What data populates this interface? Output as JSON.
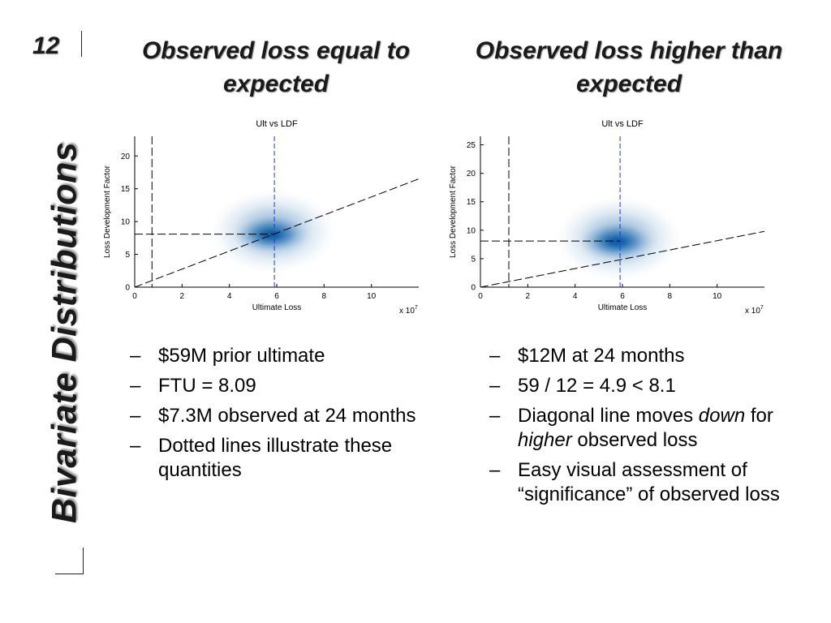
{
  "slide": {
    "number": "12",
    "side_title": "Bivariate Distributions"
  },
  "left": {
    "heading": "Observed loss equal to expected",
    "bullets": [
      {
        "dash": "–",
        "parts": [
          {
            "t": "$59M prior ultimate",
            "i": false
          }
        ]
      },
      {
        "dash": "–",
        "parts": [
          {
            "t": "FTU = 8.09",
            "i": false
          }
        ]
      },
      {
        "dash": "–",
        "parts": [
          {
            "t": "$7.3M observed at 24 months",
            "i": false
          }
        ]
      },
      {
        "dash": "–",
        "parts": [
          {
            "t": "Dotted lines illustrate these quantities",
            "i": false
          }
        ]
      }
    ]
  },
  "right": {
    "heading": "Observed loss higher than expected",
    "bullets": [
      {
        "dash": "–",
        "parts": [
          {
            "t": "$12M at 24 months",
            "i": false
          }
        ]
      },
      {
        "dash": "–",
        "parts": [
          {
            "t": "59 / 12 = 4.9 < 8.1",
            "i": false
          }
        ]
      },
      {
        "dash": "–",
        "parts": [
          {
            "t": "Diagonal line moves ",
            "i": false
          },
          {
            "t": "down",
            "i": true
          },
          {
            "t": " for ",
            "i": false
          },
          {
            "t": "higher",
            "i": true
          },
          {
            "t": " observed loss",
            "i": false
          }
        ]
      },
      {
        "dash": "–",
        "parts": [
          {
            "t": "Easy visual assessment of “significance” of observed loss",
            "i": false
          }
        ]
      }
    ]
  },
  "chart_data": [
    {
      "type": "heatmap",
      "title": "Ult vs LDF",
      "xlabel": "Ultimate Loss",
      "ylabel": "Loss Development Factor",
      "x_multiplier_label": "x 10",
      "x_multiplier_exp": "7",
      "xlim": [
        0,
        12
      ],
      "ylim": [
        0,
        23
      ],
      "xticks": [
        0,
        2,
        4,
        6,
        8,
        10
      ],
      "yticks": [
        0,
        5,
        10,
        15,
        20
      ],
      "density_center": {
        "x": 5.9,
        "y": 8.0
      },
      "colors": {
        "density": "#0b5ea8",
        "prior_ultimate_line": "#1f3fd1",
        "reference_lines": "#000000"
      },
      "reference_lines": {
        "prior_ultimate_x": 5.9,
        "observed_loss_x": 0.73,
        "ftu_y": 8.09,
        "diagonal": [
          [
            0,
            0
          ],
          [
            12,
            16.5
          ]
        ]
      },
      "grid": false
    },
    {
      "type": "heatmap",
      "title": "Ult vs LDF",
      "xlabel": "Ultimate Loss",
      "ylabel": "Loss Development Factor",
      "x_multiplier_label": "x 10",
      "x_multiplier_exp": "7",
      "xlim": [
        0,
        12
      ],
      "ylim": [
        0,
        26.5
      ],
      "xticks": [
        0,
        2,
        4,
        6,
        8,
        10
      ],
      "yticks": [
        0,
        5,
        10,
        15,
        20,
        25
      ],
      "density_center": {
        "x": 5.9,
        "y": 8.0
      },
      "colors": {
        "density": "#0b5ea8",
        "prior_ultimate_line": "#1f3fd1",
        "reference_lines": "#000000"
      },
      "reference_lines": {
        "prior_ultimate_x": 5.9,
        "observed_loss_x": 1.2,
        "ftu_y": 8.1,
        "diagonal": [
          [
            0,
            0
          ],
          [
            12,
            9.8
          ]
        ]
      },
      "grid": false
    }
  ]
}
